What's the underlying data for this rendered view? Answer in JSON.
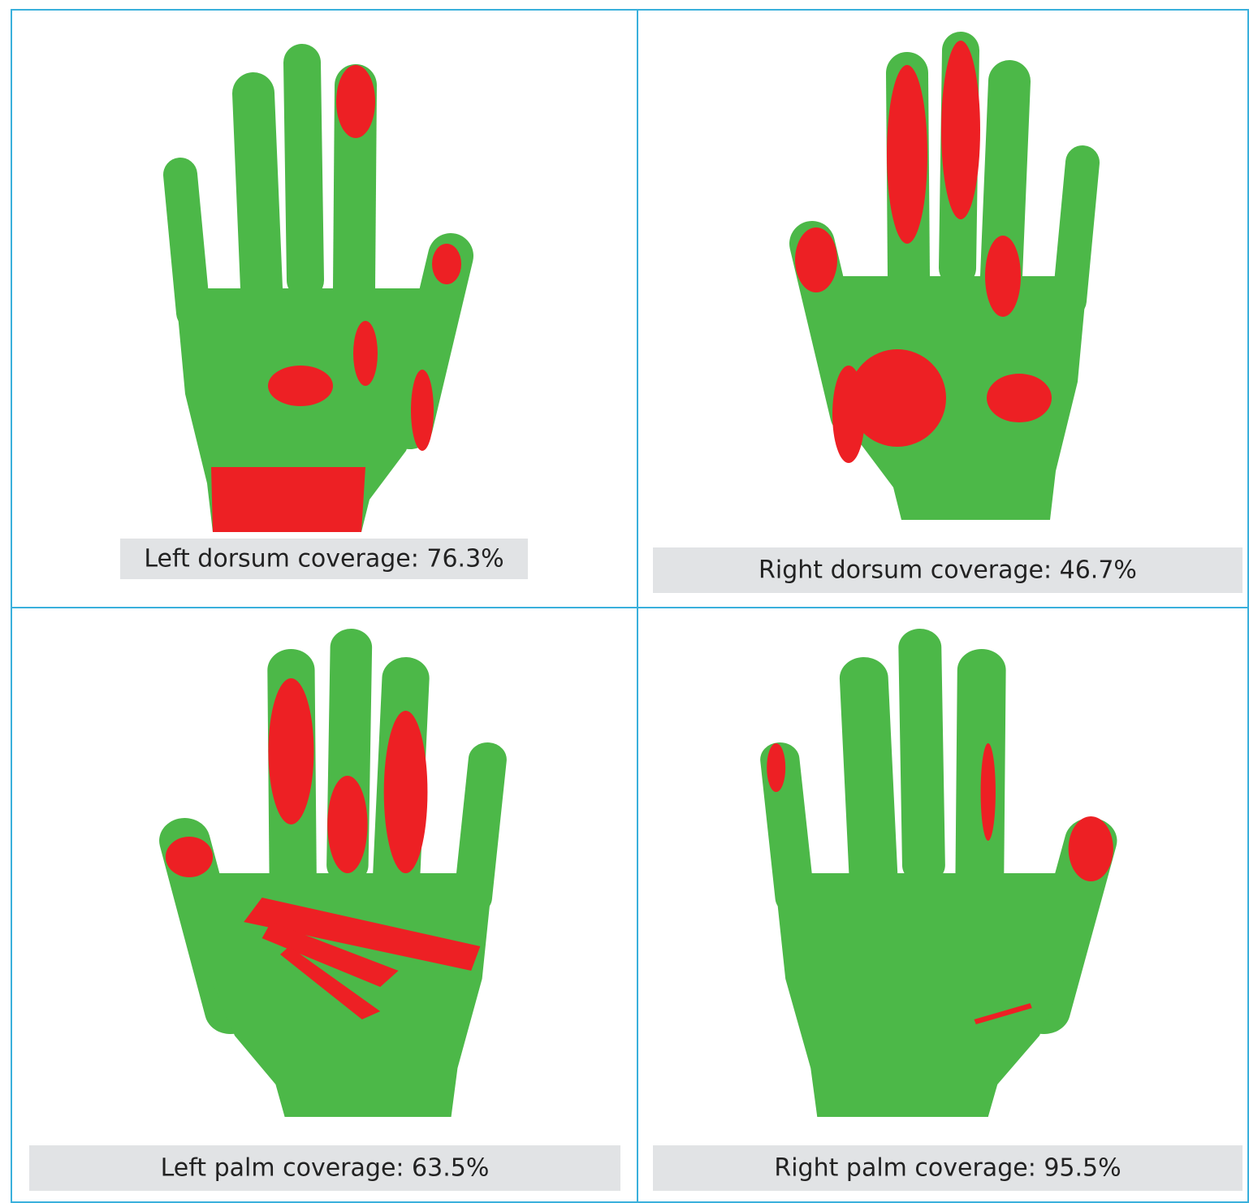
{
  "panels": [
    {
      "caption": "Left dorsum coverage: 76.3%"
    },
    {
      "caption": "Right dorsum coverage: 46.7%"
    },
    {
      "caption": "Left palm coverage: 63.5%"
    },
    {
      "caption": "Right palm coverage: 95.5%"
    }
  ]
}
